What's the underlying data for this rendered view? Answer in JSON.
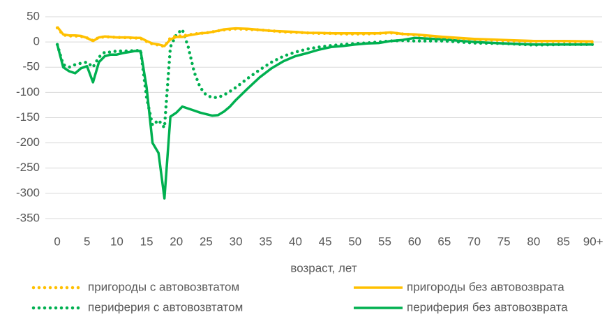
{
  "chart_data": {
    "type": "line",
    "x_label": "возраст, лет",
    "x": [
      0,
      1,
      2,
      3,
      4,
      5,
      6,
      7,
      8,
      9,
      10,
      11,
      12,
      13,
      14,
      15,
      16,
      17,
      18,
      19,
      20,
      21,
      22,
      23,
      24,
      25,
      26,
      27,
      28,
      29,
      30,
      32,
      34,
      36,
      38,
      40,
      42,
      44,
      46,
      48,
      50,
      52,
      54,
      56,
      58,
      60,
      65,
      70,
      75,
      80,
      85,
      90
    ],
    "series": [
      {
        "name": "пригороды с автовозвтатом",
        "color": "#FFC000",
        "dash": "dotted",
        "values": [
          28,
          14,
          12,
          12,
          11,
          8,
          3,
          9,
          10,
          10,
          9,
          9,
          8,
          8,
          7,
          1,
          -4,
          -6,
          -9,
          8,
          12,
          12,
          14,
          16,
          17,
          18,
          20,
          22,
          24,
          25,
          26,
          25,
          24,
          22,
          20,
          19,
          18,
          17,
          17,
          16,
          16,
          16,
          17,
          18,
          16,
          14,
          9,
          5,
          3,
          1,
          1,
          0
        ]
      },
      {
        "name": "пригороды без автовозврата",
        "color": "#FFC000",
        "dash": "solid",
        "values": [
          30,
          15,
          13,
          13,
          12,
          8,
          2,
          9,
          11,
          10,
          9,
          9,
          9,
          8,
          8,
          2,
          -3,
          -5,
          -8,
          5,
          10,
          10,
          13,
          15,
          17,
          18,
          20,
          22,
          25,
          26,
          27,
          26,
          24,
          22,
          21,
          20,
          18,
          18,
          17,
          17,
          17,
          17,
          17,
          19,
          16,
          15,
          10,
          6,
          4,
          2,
          2,
          1
        ]
      },
      {
        "name": "периферия с автовозвтатом",
        "color": "#00B050",
        "dash": "dotted",
        "values": [
          -5,
          -45,
          -50,
          -45,
          -42,
          -40,
          -50,
          -30,
          -20,
          -20,
          -18,
          -18,
          -18,
          -17,
          -17,
          -110,
          -165,
          -155,
          -170,
          -10,
          15,
          25,
          -10,
          -60,
          -90,
          -105,
          -110,
          -110,
          -105,
          -98,
          -90,
          -72,
          -55,
          -40,
          -28,
          -20,
          -14,
          -10,
          -7,
          -5,
          -3,
          -2,
          0,
          2,
          3,
          2,
          2,
          -2,
          -3,
          -6,
          -5,
          -5
        ]
      },
      {
        "name": "периферия без автовозврата",
        "color": "#00B050",
        "dash": "solid",
        "values": [
          -5,
          -50,
          -58,
          -62,
          -52,
          -48,
          -80,
          -40,
          -28,
          -25,
          -25,
          -22,
          -20,
          -18,
          -18,
          -90,
          -200,
          -220,
          -310,
          -148,
          -140,
          -128,
          -132,
          -136,
          -140,
          -143,
          -146,
          -145,
          -138,
          -128,
          -115,
          -92,
          -70,
          -52,
          -38,
          -28,
          -22,
          -15,
          -10,
          -8,
          -5,
          -3,
          -2,
          2,
          4,
          8,
          5,
          0,
          -3,
          -5,
          -5,
          -5
        ]
      }
    ],
    "xlim": [
      -2,
      91.5
    ],
    "xticks": [
      0,
      5,
      10,
      15,
      20,
      25,
      30,
      35,
      40,
      45,
      50,
      55,
      60,
      65,
      70,
      75,
      80,
      85,
      {
        "value": 90,
        "label": "90+"
      }
    ],
    "ylim": [
      -350,
      50
    ],
    "yticks": [
      50,
      0,
      -50,
      -100,
      -150,
      -200,
      -250,
      -300,
      -350
    ],
    "grid": true
  }
}
